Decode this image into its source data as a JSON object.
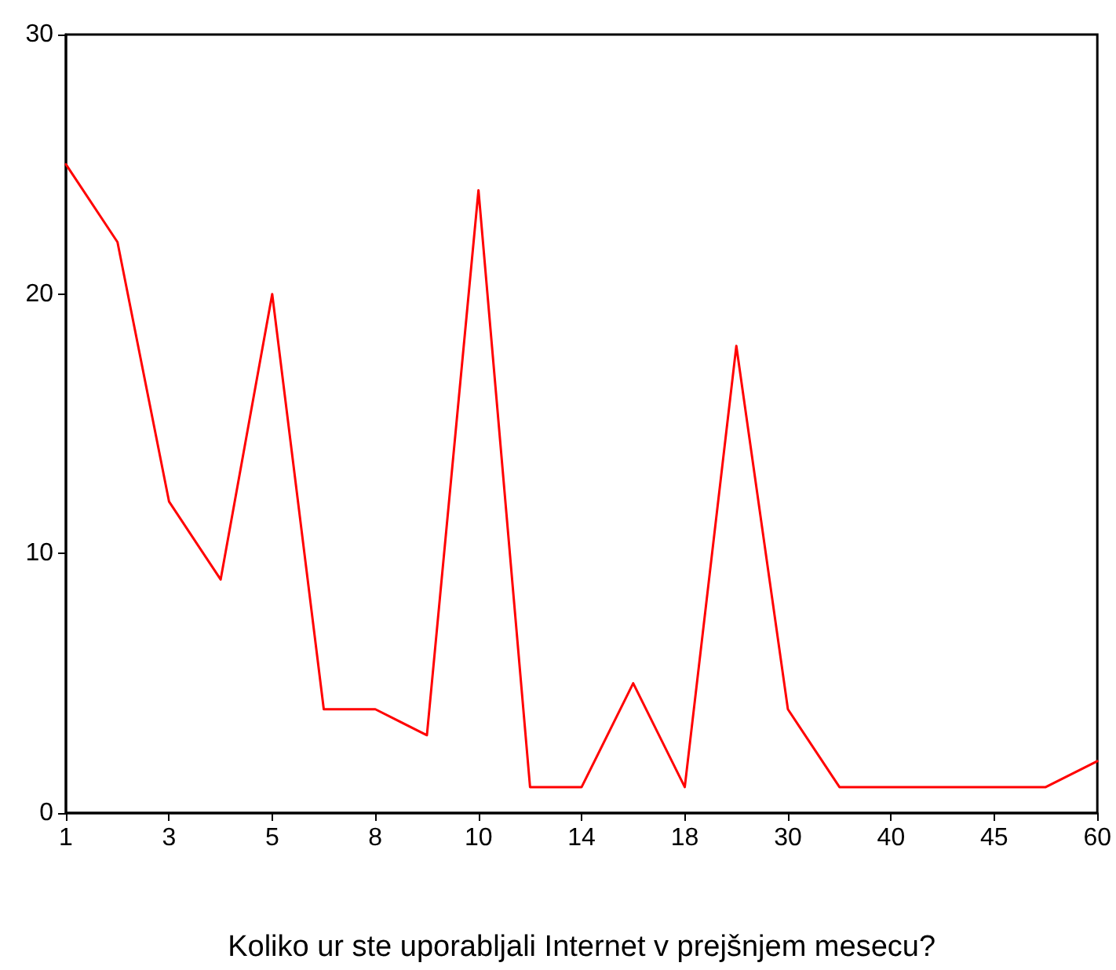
{
  "chart_data": {
    "type": "line",
    "xlabel": "Koliko ur ste uporabljali Internet v prejšnjem mesecu?",
    "categories": [
      "1",
      null,
      "3",
      null,
      "5",
      null,
      "8",
      null,
      "10",
      null,
      "14",
      null,
      "18",
      null,
      "30",
      null,
      "40",
      null,
      "45",
      null,
      "60"
    ],
    "series": [
      {
        "color": "#ff0000",
        "values": [
          25,
          22,
          12,
          9,
          20,
          4,
          4,
          3,
          24,
          1,
          1,
          5,
          1,
          18,
          4,
          1,
          1,
          1,
          1,
          1,
          2
        ]
      }
    ],
    "ylim": [
      0,
      30
    ],
    "yticks": [
      0,
      10,
      20,
      30
    ],
    "grid": false,
    "marker": "none",
    "line_style": "solid"
  }
}
